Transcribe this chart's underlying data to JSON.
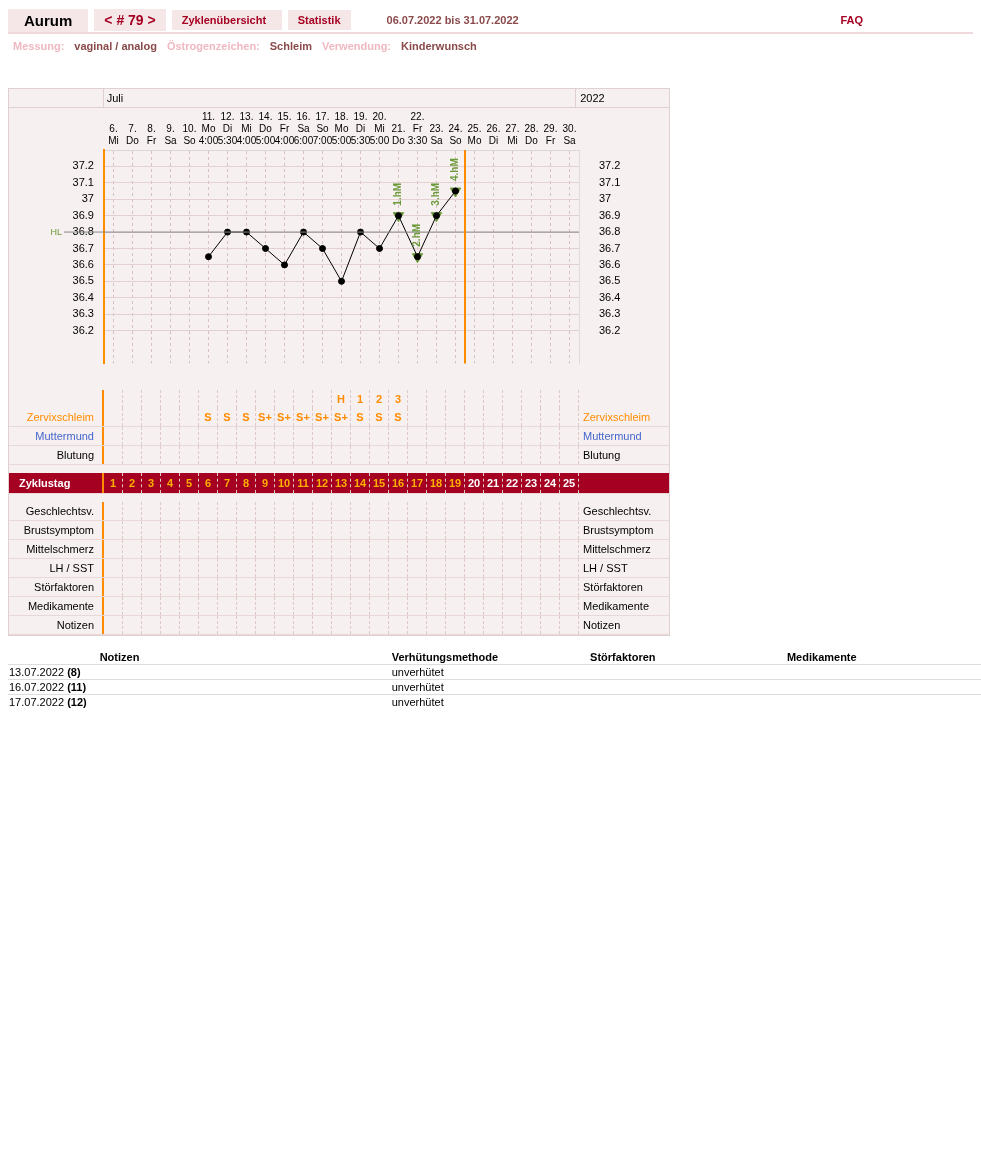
{
  "chart_data": {
    "type": "line",
    "title": "Aurum",
    "subtitle": "06.07.2022 bis 31.07.2022",
    "categories": [
      "6. Mi",
      "7. Do",
      "8. Fr",
      "9. Sa",
      "10. So",
      "11. Mo 4:00",
      "12. Di 5:30",
      "13. Mi 4:00",
      "14. Do 5:00",
      "15. Fr 4:00",
      "16. Sa 6:00",
      "17. So 7:00",
      "18. Mo 5:00",
      "19. Di 5:30",
      "20. Mi 5:00",
      "21. Do",
      "22. Fr 3:30",
      "23. Sa",
      "24. So",
      "25. Mo",
      "26. Di",
      "27. Mi",
      "28. Do",
      "29. Fr",
      "30. Sa"
    ],
    "series": [
      {
        "type": "line",
        "color": "#000000",
        "marker": "circle",
        "values": [
          null,
          null,
          null,
          null,
          null,
          36.65,
          36.8,
          36.8,
          36.7,
          36.6,
          36.8,
          36.7,
          36.5,
          36.8,
          36.7,
          36.9,
          36.65,
          36.9,
          37.05,
          null,
          null,
          null,
          null,
          null,
          null
        ]
      },
      {
        "type": "scatter",
        "color": "#6a9a3a",
        "marker": "triangle",
        "values": [
          null,
          null,
          null,
          null,
          null,
          null,
          null,
          null,
          null,
          null,
          null,
          null,
          null,
          null,
          null,
          36.9,
          36.65,
          36.9,
          37.05,
          null,
          null,
          null,
          null,
          null,
          null
        ]
      }
    ],
    "ylim": [
      36.0,
      37.3
    ],
    "yticks": [
      36.2,
      36.3,
      36.4,
      36.5,
      36.6,
      36.7,
      36.8,
      36.9,
      {
        "value": 37.0,
        "label": "37"
      },
      37.1,
      37.2
    ],
    "y2lim": [
      36.0,
      37.3
    ],
    "y2ticks": [
      36.2,
      36.3,
      36.4,
      36.5,
      36.6,
      36.7,
      36.8,
      36.9,
      {
        "value": 37.0,
        "label": "37"
      },
      37.1,
      37.2
    ],
    "grid": true,
    "legend": false,
    "ref_lines": [
      {
        "axis": "y",
        "value": 36.8,
        "label": "HL",
        "color": "#888888"
      },
      {
        "axis": "x",
        "value": "24. So",
        "color": "#ff8c00"
      }
    ],
    "annotations": [
      "< # 79 >",
      "Zyklenübersicht",
      "Statistik",
      "FAQ",
      "Messung:",
      "vaginal / analog",
      "Östrogenzeichen:",
      "Schleim",
      "Verwendung:",
      "Kinderwunsch",
      "Juli",
      "2022",
      "Zervixschleim",
      "Muttermund",
      "Blutung",
      "Zyklustag",
      "Geschlechtsv.",
      "Brustsymptom",
      "Mittelschmerz",
      "LH / SST",
      "Störfaktoren",
      "Medikamente",
      "Notizen",
      "Notizen",
      "Verhütungsmethode",
      "Störfaktoren",
      "Medikamente",
      "13.07.2022",
      "(8)",
      "unverhütet",
      "16.07.2022",
      "(11)",
      "unverhütet",
      "17.07.2022",
      "(12)",
      "unverhütet",
      "1 2 3 4 5 6 7 8 9 10 11 12 13 14 15 16 17 18 19 20 21 22 23 24 25",
      {
        "text": "1.hM",
        "x": "21. Do",
        "y": 36.9
      },
      {
        "text": "2.hM",
        "x": "22. Fr 3:30",
        "y": 36.65
      },
      {
        "text": "3.hM",
        "x": "23. Sa",
        "y": 36.9
      },
      {
        "text": "4.hM",
        "x": "24. So",
        "y": 37.05
      },
      "H 1 2 3",
      "S",
      "S",
      "S",
      "S+",
      "S+",
      "S+",
      "S+",
      "S+",
      "S",
      "S",
      "S"
    ]
  }
}
